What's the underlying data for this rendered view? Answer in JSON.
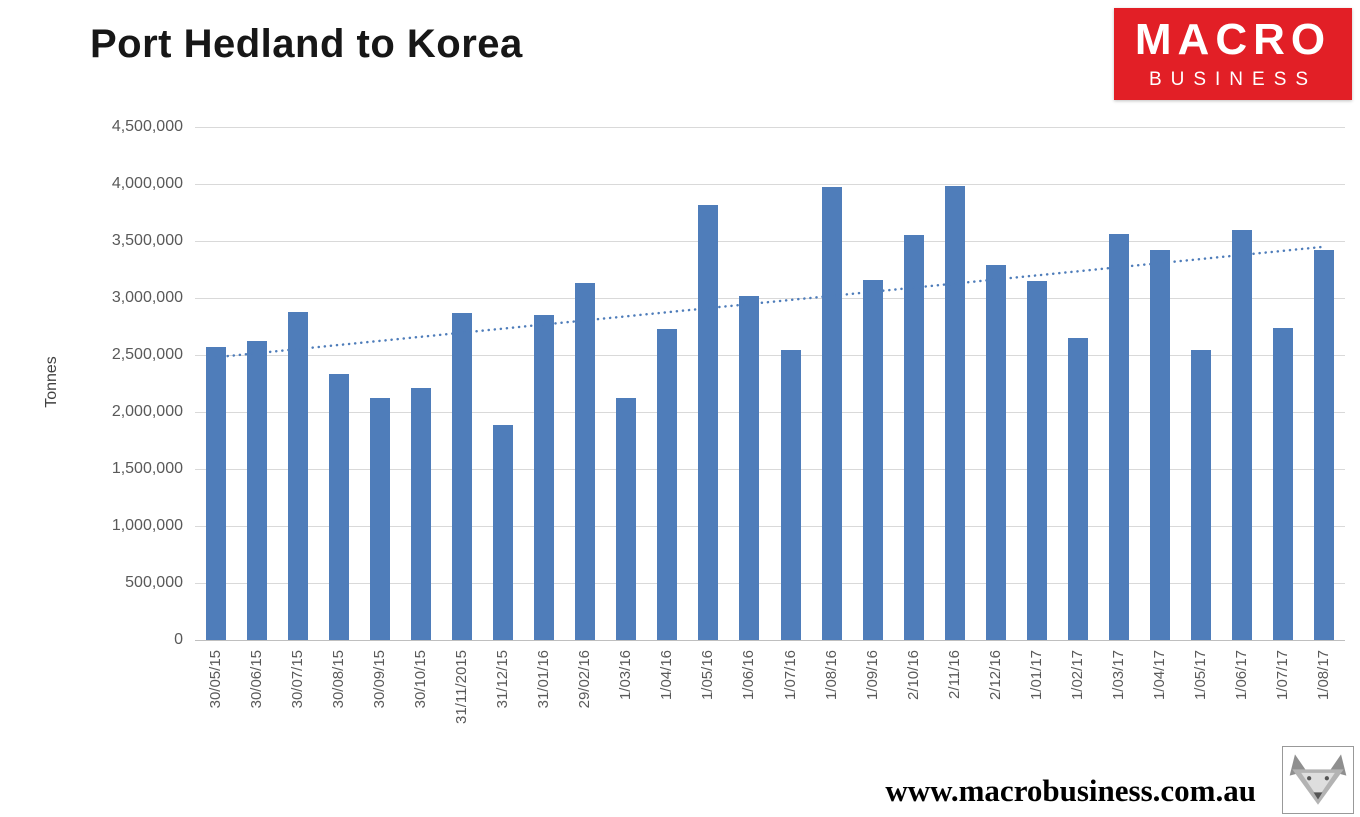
{
  "logo": {
    "macro": "MACRO",
    "business": "BUSINESS"
  },
  "footer": {
    "url": "www.macrobusiness.com.au"
  },
  "colors": {
    "bar": "#4f7dba",
    "trendline": "#4f7dba",
    "logo_red": "#e21f26",
    "gridline": "#d9d9d9"
  },
  "chart_data": {
    "type": "bar",
    "title": "Port Hedland to Korea",
    "xlabel": "",
    "ylabel": "Tonnes",
    "ylim": [
      0,
      4500000
    ],
    "ytick_step": 500000,
    "ytick_labels": [
      "0",
      "500,000",
      "1,000,000",
      "1,500,000",
      "2,000,000",
      "2,500,000",
      "3,000,000",
      "3,500,000",
      "4,000,000",
      "4,500,000"
    ],
    "grid": true,
    "legend": "none",
    "categories": [
      "30/05/15",
      "30/06/15",
      "30/07/15",
      "30/08/15",
      "30/09/15",
      "30/10/15",
      "31/11/2015",
      "31/12/15",
      "31/01/16",
      "29/02/16",
      "1/03/16",
      "1/04/16",
      "1/05/16",
      "1/06/16",
      "1/07/16",
      "1/08/16",
      "1/09/16",
      "2/10/16",
      "2/11/16",
      "2/12/16",
      "1/01/17",
      "1/02/17",
      "1/03/17",
      "1/04/17",
      "1/05/17",
      "1/06/17",
      "1/07/17",
      "1/08/17"
    ],
    "values": [
      2570000,
      2620000,
      2880000,
      2330000,
      2120000,
      2210000,
      2870000,
      1890000,
      2850000,
      3130000,
      2120000,
      2730000,
      3820000,
      3020000,
      2540000,
      3970000,
      3160000,
      3550000,
      3980000,
      3290000,
      3150000,
      2650000,
      3560000,
      3420000,
      2540000,
      3600000,
      2740000,
      3420000
    ],
    "trendline": {
      "style": "dotted",
      "start_value": 2480000,
      "end_value": 3450000
    }
  }
}
